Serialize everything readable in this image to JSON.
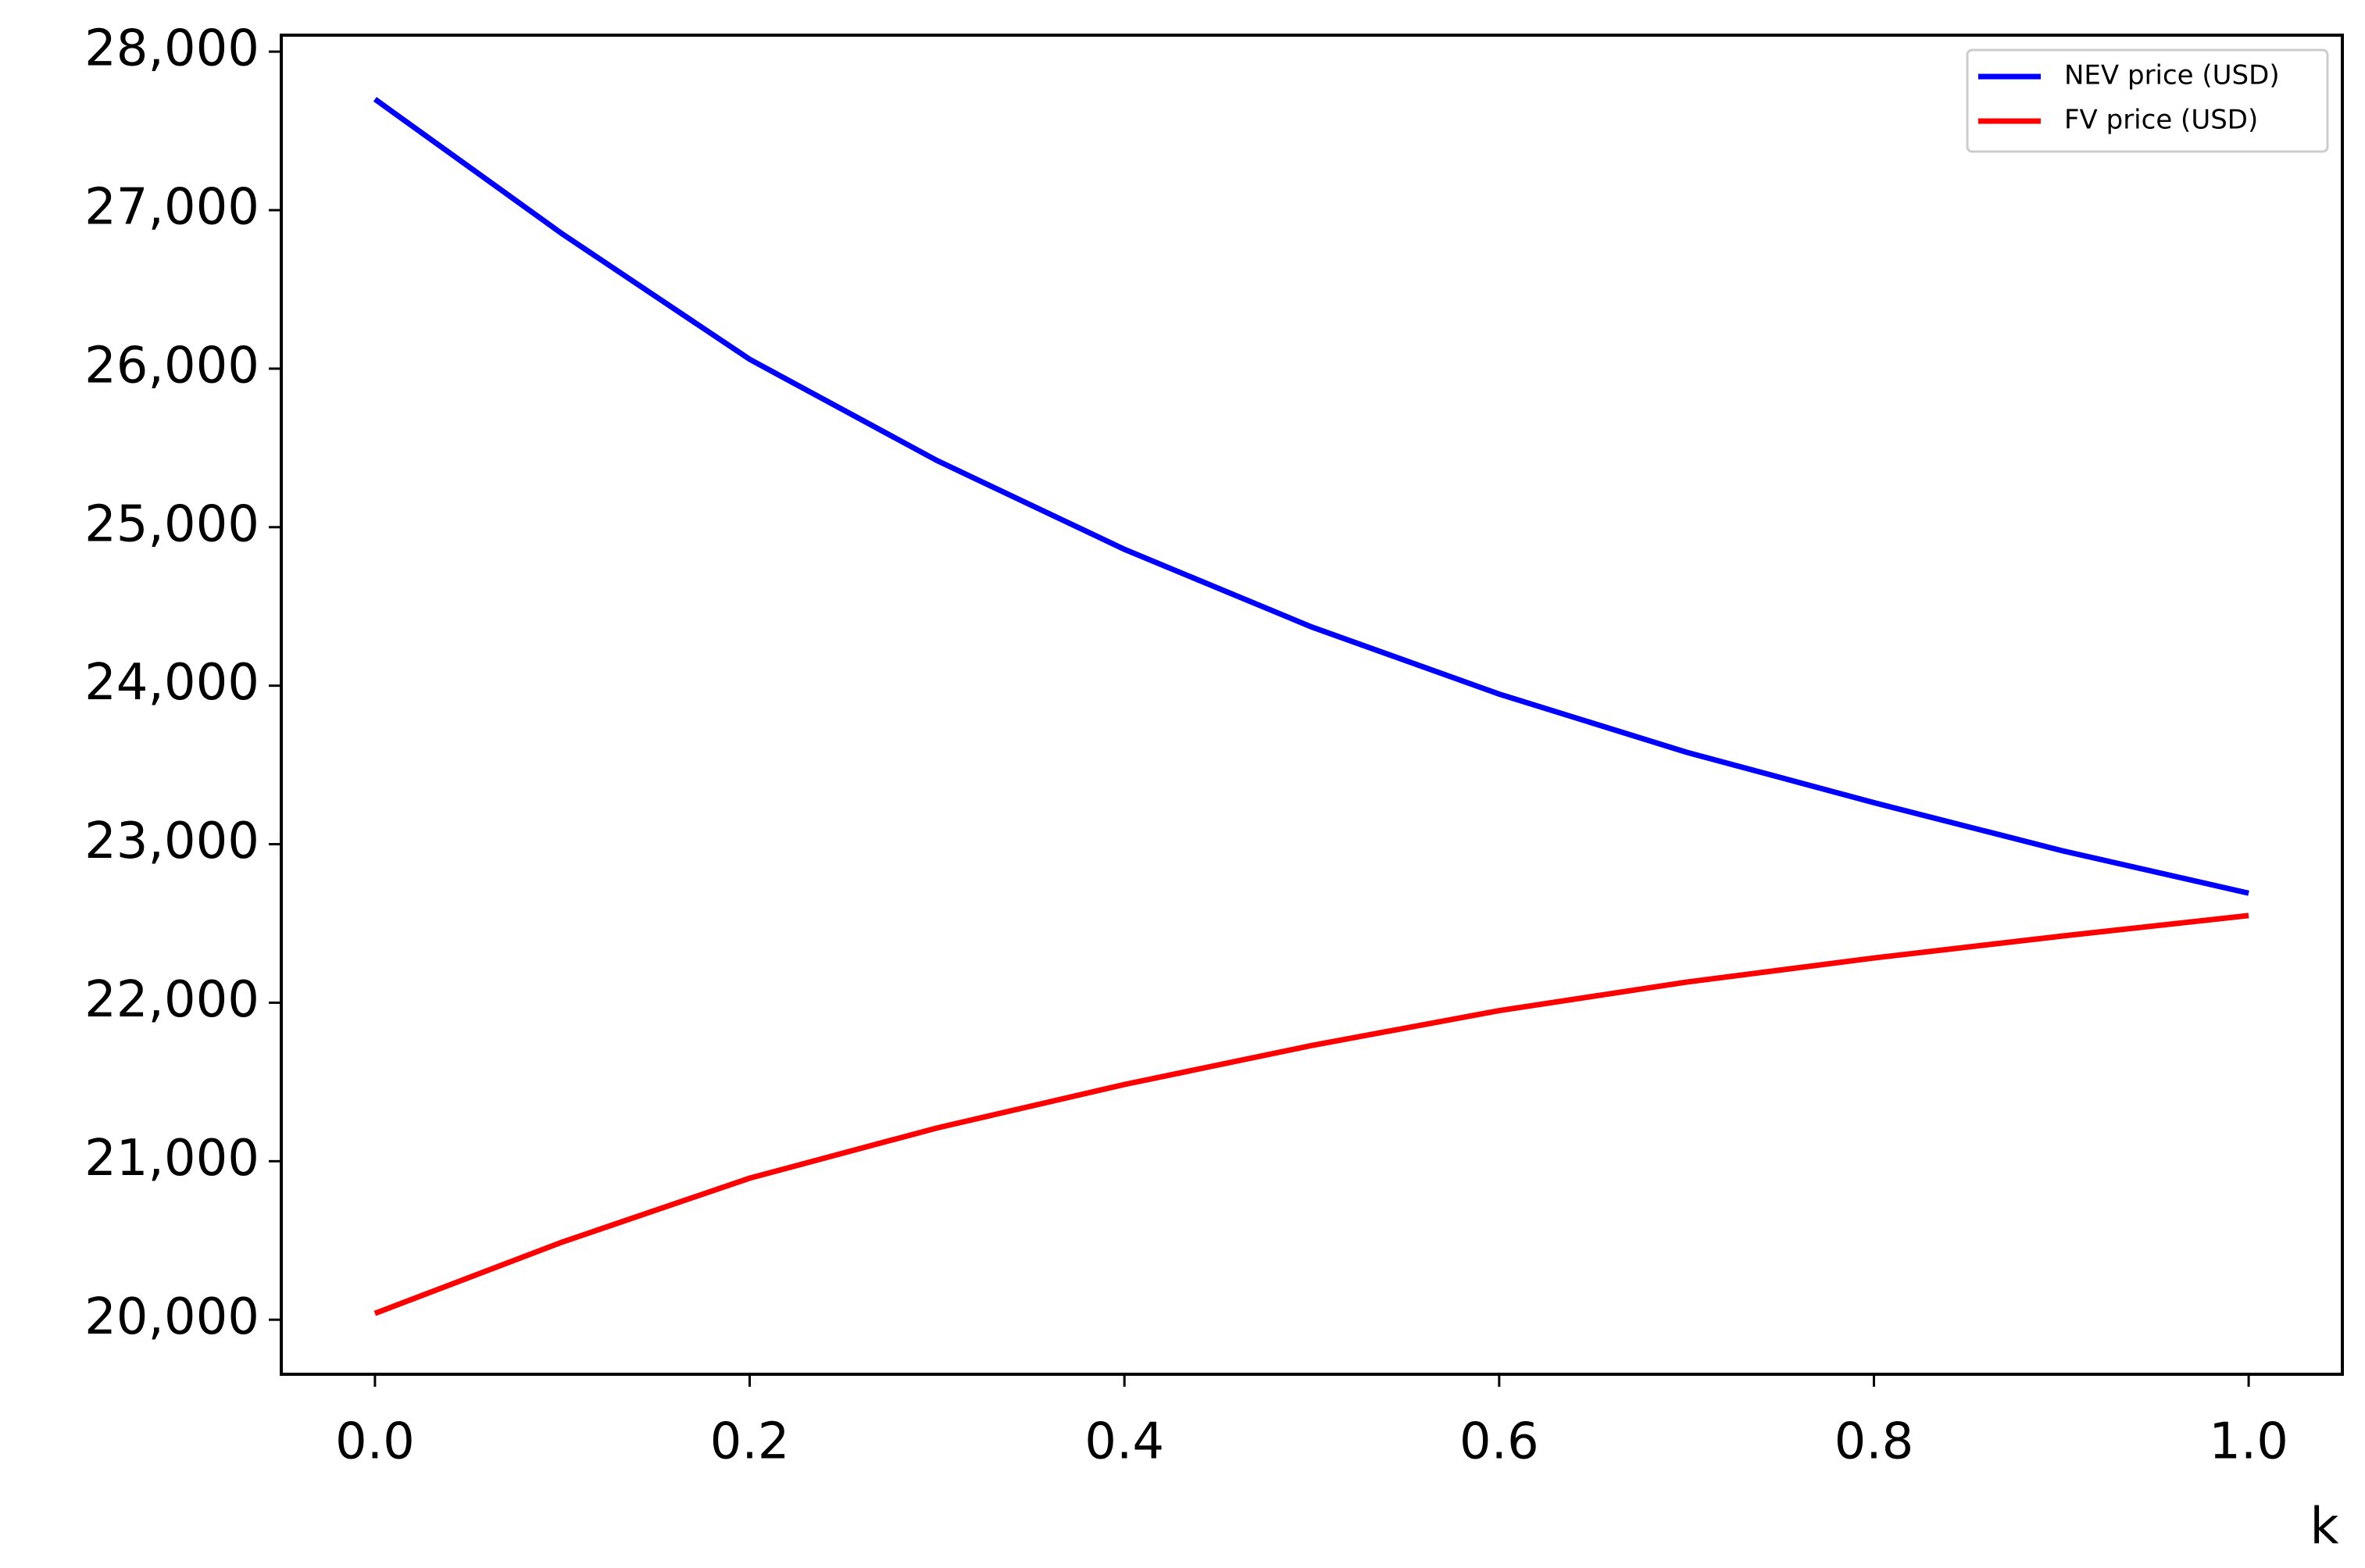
{
  "chart_data": {
    "type": "line",
    "x_label": "k",
    "x": [
      0,
      0.1,
      0.2,
      0.3,
      0.4,
      0.5,
      0.6,
      0.7,
      0.8,
      0.9,
      1
    ],
    "series": [
      {
        "name": "NEV price (USD)",
        "color": "#0000ff",
        "values": [
          27700,
          26850,
          26059,
          25420,
          24860,
          24370,
          23947,
          23580,
          23262,
          22960,
          22691
        ]
      },
      {
        "name": "FV price (USD)",
        "color": "#ff0000",
        "values": [
          20040,
          20490,
          20893,
          21210,
          21484,
          21730,
          21950,
          22130,
          22282,
          22420,
          22550
        ]
      }
    ],
    "xlim": [
      -0.05,
      1.05
    ],
    "ylim": [
      19656,
      28104
    ],
    "xticks": [
      {
        "value": 0,
        "label": "0.0"
      },
      0.2,
      0.4,
      0.6,
      0.8,
      {
        "value": 1,
        "label": "1.0"
      }
    ],
    "yticks": [
      {
        "value": 20000,
        "label": "20,000"
      },
      {
        "value": 21000,
        "label": "21,000"
      },
      {
        "value": 22000,
        "label": "22,000"
      },
      {
        "value": 23000,
        "label": "23,000"
      },
      {
        "value": 24000,
        "label": "24,000"
      },
      {
        "value": 25000,
        "label": "25,000"
      },
      {
        "value": 26000,
        "label": "26,000"
      },
      {
        "value": 27000,
        "label": "27,000"
      },
      {
        "value": 28000,
        "label": "28,000"
      }
    ],
    "legend": "upper right",
    "grid": false
  }
}
